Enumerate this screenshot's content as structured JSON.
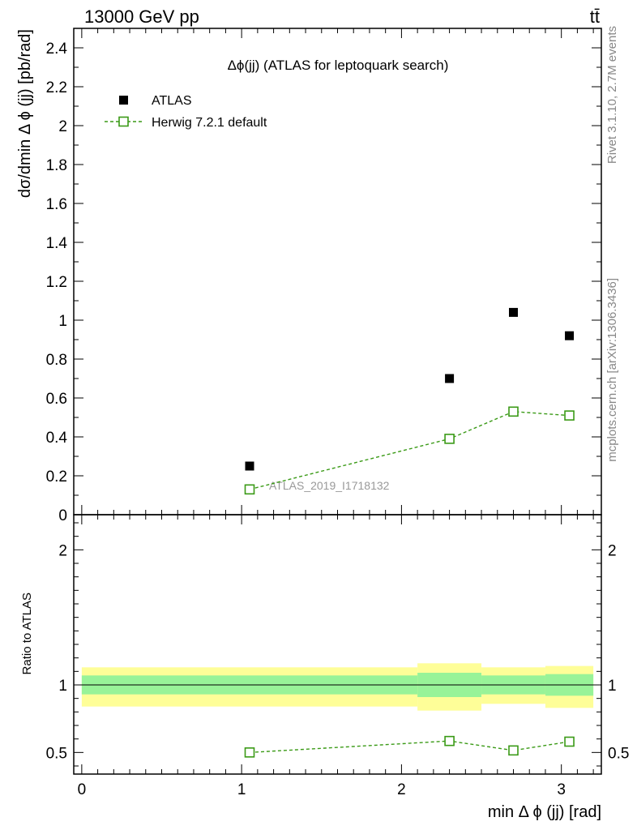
{
  "header": {
    "energy_label": "13000 GeV pp",
    "process_label": "tt̄"
  },
  "side_labels": {
    "rivet": "Rivet 3.1.10,  2.7M events",
    "mcplots": "mcplots.cern.ch [arXiv:1306.3436]"
  },
  "chart_data": [
    {
      "type": "scatter",
      "panel": "main",
      "title": "Δϕ(jj) (ATLAS for leptoquark search)",
      "ylabel": "dσ/dmin Δ ϕ (jj) [pb/rad]",
      "xlim": [
        -0.05,
        3.25
      ],
      "ylim": [
        0,
        2.5
      ],
      "yticks": [
        0,
        0.2,
        0.4,
        0.6,
        0.8,
        1,
        1.2,
        1.4,
        1.6,
        1.8,
        2,
        2.2,
        2.4
      ],
      "ytick_labels": [
        "0",
        "0.2",
        "0.4",
        "0.6",
        "0.8",
        "1",
        "1.2",
        "1.4",
        "1.6",
        "1.8",
        "2",
        "2.2",
        "2.4"
      ],
      "watermark": "ATLAS_2019_I1718132",
      "legend_position": "top-left",
      "series": [
        {
          "name": "ATLAS",
          "style": "black-square-marker",
          "color": "#000000",
          "x": [
            1.05,
            2.3,
            2.7,
            3.05
          ],
          "y": [
            0.25,
            0.7,
            1.04,
            0.92
          ]
        },
        {
          "name": "Herwig 7.2.1 default",
          "style": "green-open-square-dashed-line",
          "color": "#3a9a16",
          "x": [
            1.05,
            2.3,
            2.7,
            3.05
          ],
          "y": [
            0.13,
            0.39,
            0.53,
            0.51
          ]
        }
      ]
    },
    {
      "type": "line",
      "panel": "ratio",
      "ylabel": "Ratio to ATLAS",
      "xlabel": "min Δ ϕ (jj) [rad]",
      "xlim": [
        -0.05,
        3.25
      ],
      "ylim": [
        0.34,
        2.26
      ],
      "yticks": [
        0.5,
        1,
        2
      ],
      "ytick_labels": [
        "0.5",
        "1",
        "2"
      ],
      "xticks": [
        0,
        1,
        2,
        3
      ],
      "xtick_labels": [
        "0",
        "1",
        "2",
        "3"
      ],
      "bands": [
        {
          "xlo": 0.0,
          "xhi": 2.1,
          "stat_lo": 0.93,
          "stat_hi": 1.07,
          "tot_lo": 0.84,
          "tot_hi": 1.13
        },
        {
          "xlo": 2.1,
          "xhi": 2.5,
          "stat_lo": 0.91,
          "stat_hi": 1.09,
          "tot_lo": 0.81,
          "tot_hi": 1.16
        },
        {
          "xlo": 2.5,
          "xhi": 2.9,
          "stat_lo": 0.93,
          "stat_hi": 1.07,
          "tot_lo": 0.86,
          "tot_hi": 1.13
        },
        {
          "xlo": 2.9,
          "xhi": 3.2,
          "stat_lo": 0.92,
          "stat_hi": 1.08,
          "tot_lo": 0.83,
          "tot_hi": 1.14
        }
      ],
      "band_colors": {
        "stat": "#98f398",
        "total": "#fefe98"
      },
      "series": [
        {
          "name": "Herwig 7.2.1 default",
          "color": "#3a9a16",
          "x": [
            1.05,
            2.3,
            2.7,
            3.05
          ],
          "y": [
            0.5,
            0.585,
            0.515,
            0.58
          ]
        }
      ]
    }
  ]
}
